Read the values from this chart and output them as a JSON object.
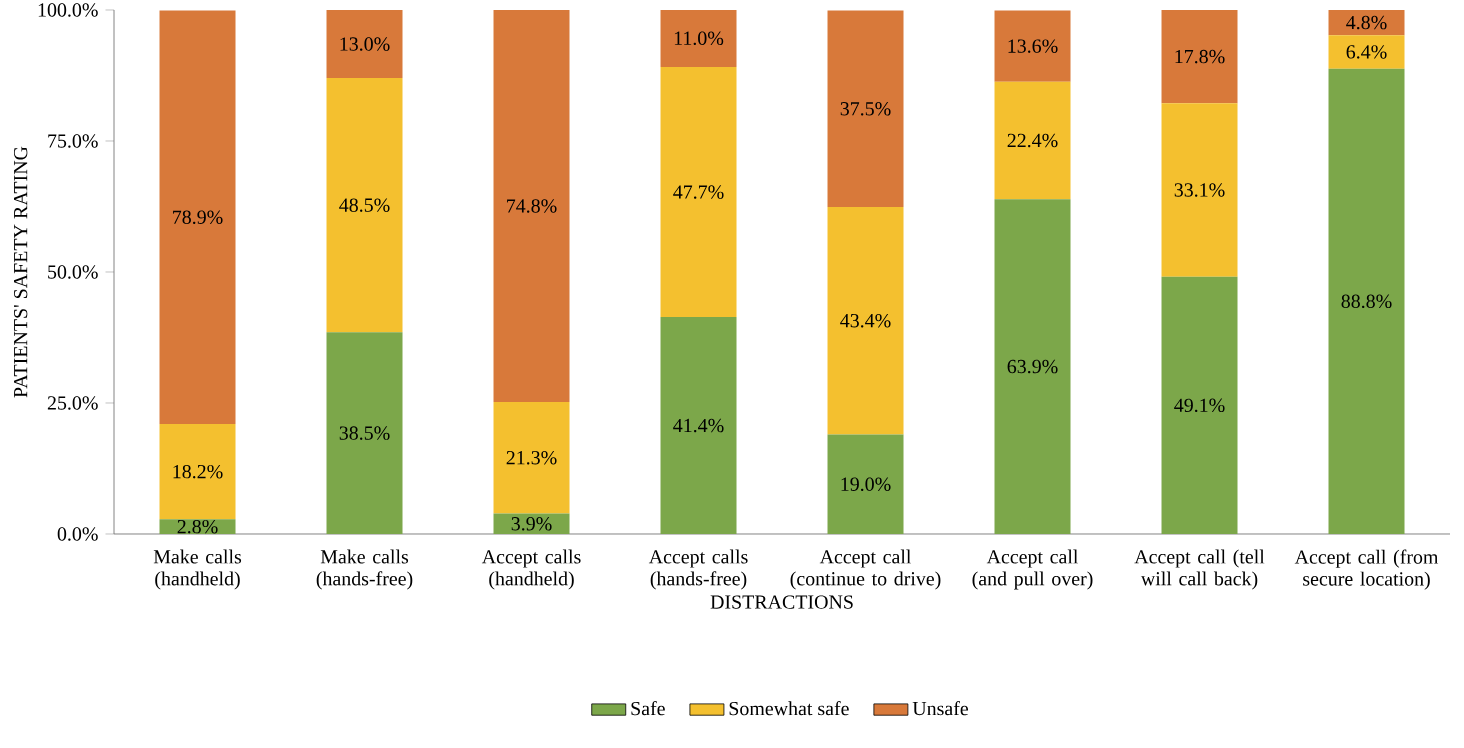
{
  "chart_data": {
    "type": "bar",
    "stacked": true,
    "xlabel": "DISTRACTIONS",
    "ylabel": "PATIENTS' SAFETY RATING",
    "categories": [
      "Make calls (handheld)",
      "Make calls (hands-free)",
      "Accept calls (handheld)",
      "Accept calls (hands-free)",
      "Accept call (continue to drive)",
      "Accept call (and pull over)",
      "Accept call (tell will call back)",
      "Accept call (from secure location)"
    ],
    "series": [
      {
        "name": "Safe",
        "color": "#7ca74a",
        "values": [
          2.8,
          38.5,
          3.9,
          41.4,
          19.0,
          63.9,
          49.1,
          88.8
        ],
        "value_labels": [
          "2.8%",
          "38.5%",
          "3.9%",
          "41.4%",
          "19.0%",
          "63.9%",
          "49.1%",
          "88.8%"
        ]
      },
      {
        "name": "Somewhat safe",
        "color": "#f4c02f",
        "values": [
          18.2,
          48.5,
          21.3,
          47.7,
          43.4,
          22.4,
          33.1,
          6.4
        ],
        "value_labels": [
          "18.2%",
          "48.5%",
          "21.3%",
          "47.7%",
          "43.4%",
          "22.4%",
          "33.1%",
          "6.4%"
        ]
      },
      {
        "name": "Unsafe",
        "color": "#d8793a",
        "values": [
          78.9,
          13.0,
          74.8,
          11.0,
          37.5,
          13.6,
          17.8,
          4.8
        ],
        "value_labels": [
          "78.9%",
          "13.0%",
          "74.8%",
          "11.0%",
          "37.5%",
          "13.6%",
          "17.8%",
          "4.8%"
        ]
      }
    ],
    "ylim": [
      0,
      100
    ],
    "yticks": [
      {
        "value": 0,
        "label": "0.0%"
      },
      {
        "value": 25,
        "label": "25.0%"
      },
      {
        "value": 50,
        "label": "50.0%"
      },
      {
        "value": 75,
        "label": "75.0%"
      },
      {
        "value": 100,
        "label": "100.0%"
      }
    ],
    "legend": "bottom"
  }
}
